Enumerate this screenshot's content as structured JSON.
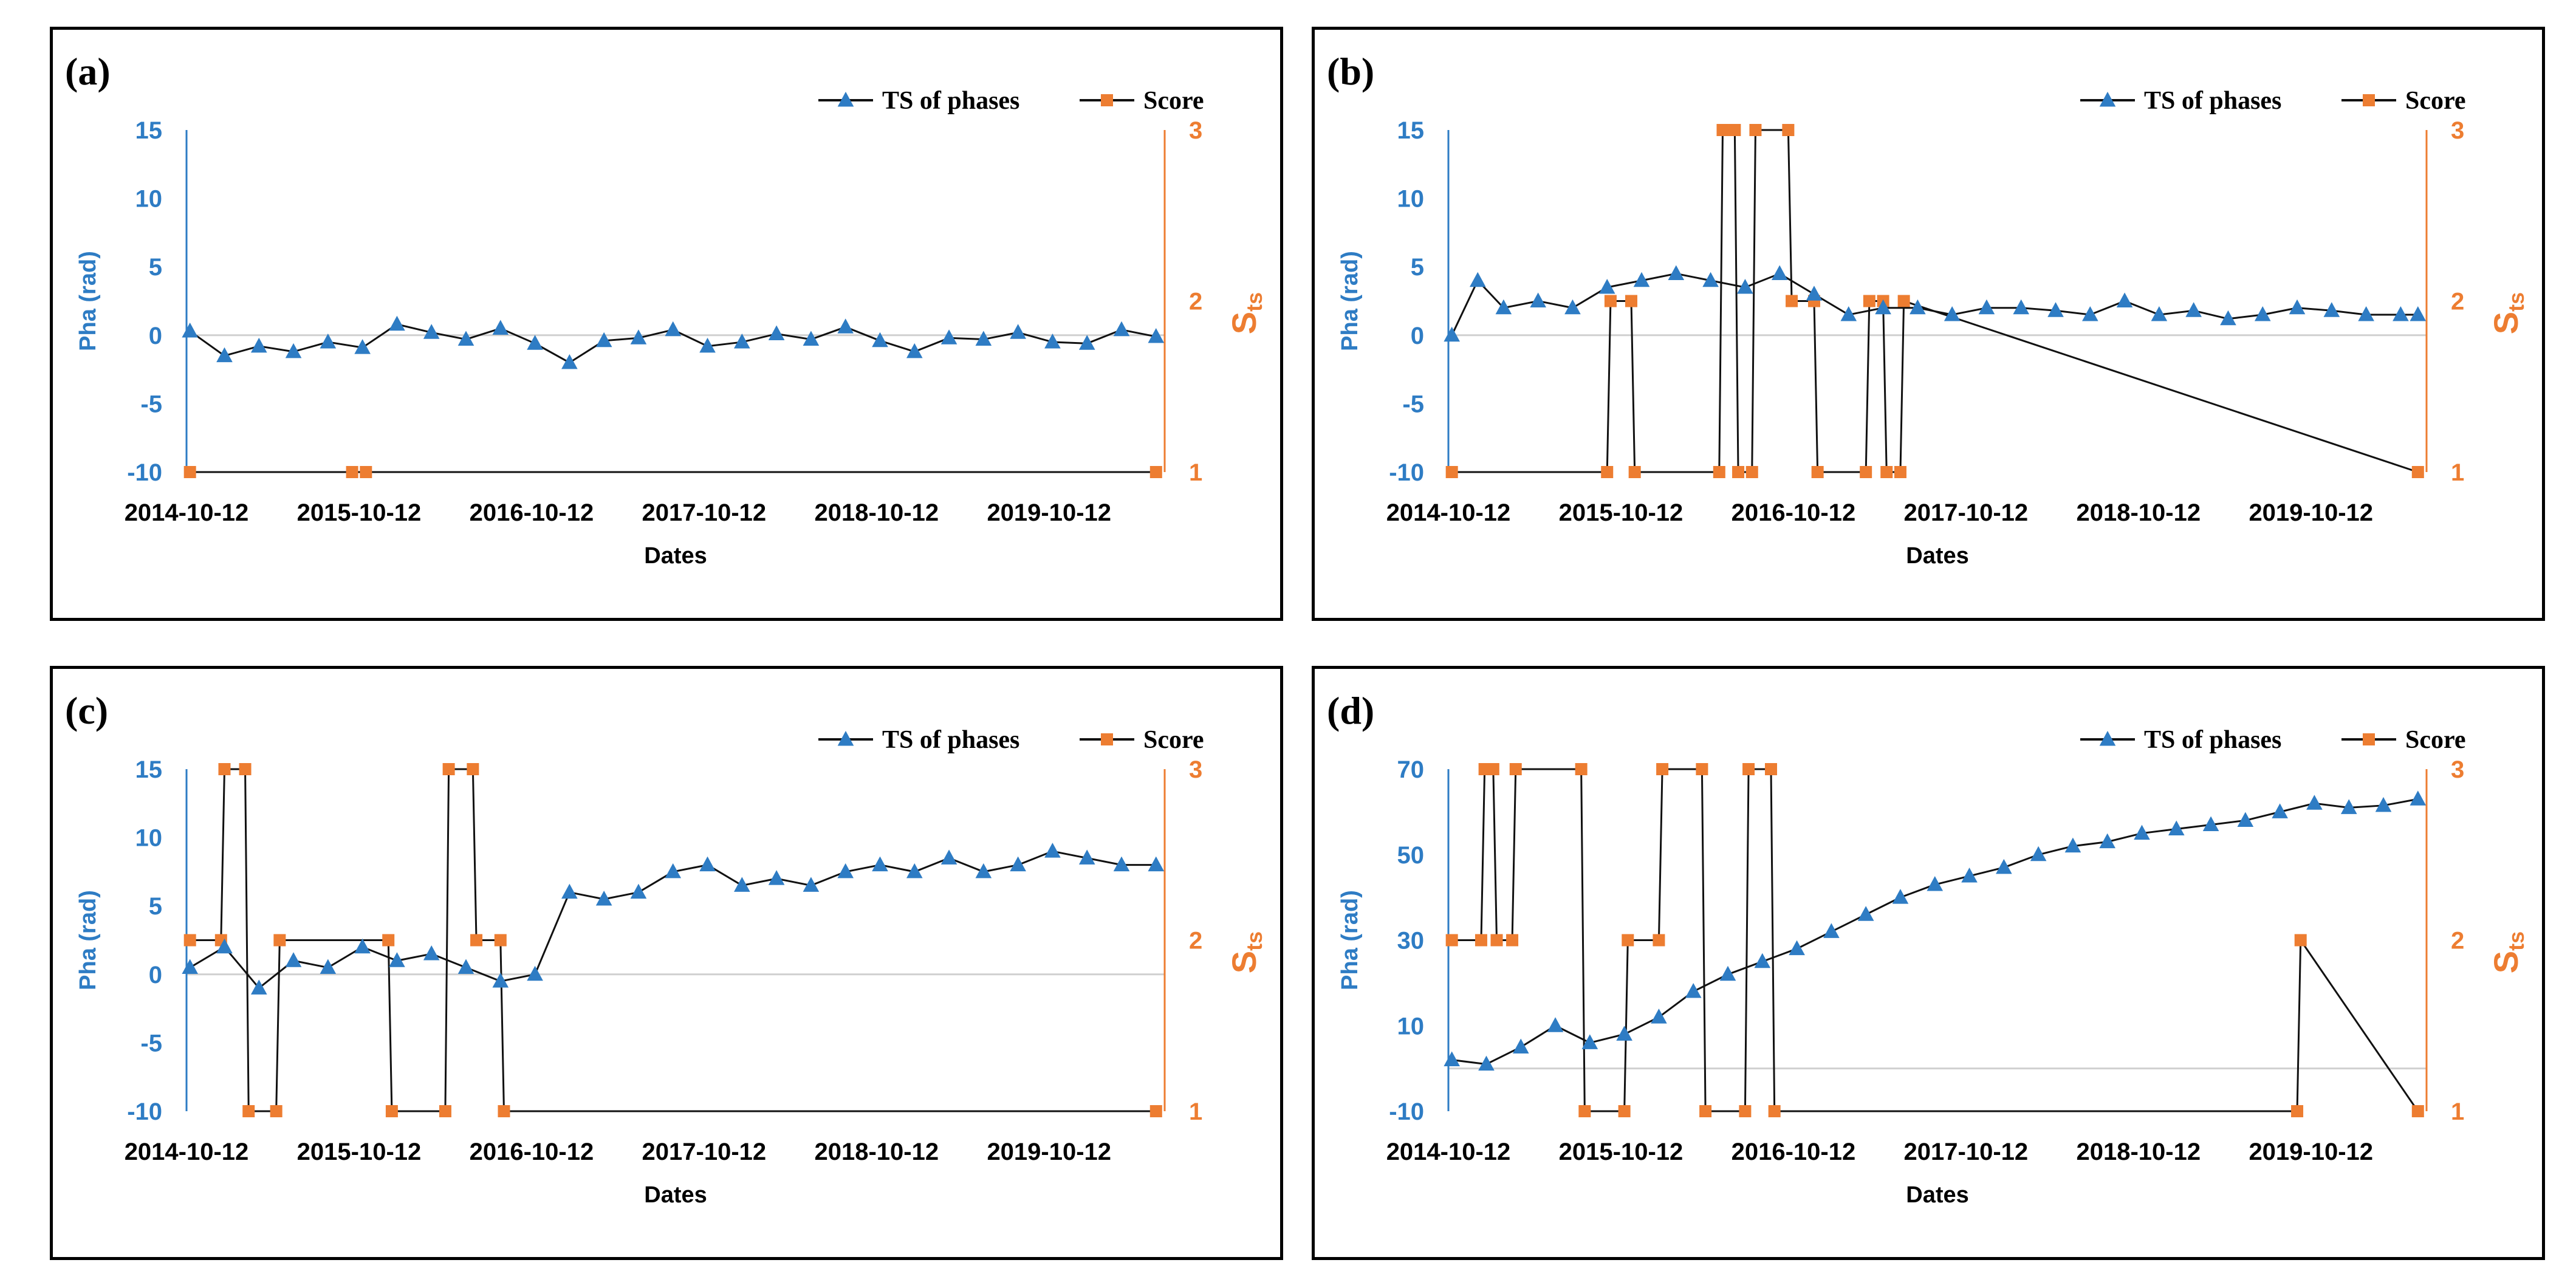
{
  "colors": {
    "ts": "#2e7cc4",
    "score": "#ed7d31",
    "line": "#111111",
    "zero": "#d0d0d0"
  },
  "chart_data": [
    {
      "type": "line",
      "panel_label": "(a)",
      "xlabel": "Dates",
      "ylabel": "Pha (rad)",
      "y2label": "S",
      "y2label_sub": "ts",
      "x_tick_labels": [
        "2014-10-12",
        "2015-10-12",
        "2016-10-12",
        "2017-10-12",
        "2018-10-12",
        "2019-10-12"
      ],
      "x_range": [
        2014.78,
        2020.45
      ],
      "ylim": [
        -10,
        15
      ],
      "y_ticks": [
        -10,
        -5,
        0,
        5,
        10,
        15
      ],
      "y2lim": [
        1,
        3
      ],
      "y2_ticks": [
        1,
        2,
        3
      ],
      "legend": [
        "TS of phases",
        "Score"
      ],
      "series": [
        {
          "name": "TS of phases",
          "axis": "left",
          "x": [
            2014.8,
            2015.0,
            2015.2,
            2015.4,
            2015.6,
            2015.8,
            2016.0,
            2016.2,
            2016.4,
            2016.6,
            2016.8,
            2017.0,
            2017.2,
            2017.4,
            2017.6,
            2017.8,
            2018.0,
            2018.2,
            2018.4,
            2018.6,
            2018.8,
            2019.0,
            2019.2,
            2019.4,
            2019.6,
            2019.8,
            2020.0,
            2020.2,
            2020.4
          ],
          "values": [
            0.3,
            -1.5,
            -0.8,
            -1.2,
            -0.5,
            -0.9,
            0.8,
            0.2,
            -0.3,
            0.5,
            -0.6,
            -2.0,
            -0.4,
            -0.2,
            0.4,
            -0.8,
            -0.5,
            0.1,
            -0.3,
            0.6,
            -0.4,
            -1.2,
            -0.2,
            -0.3,
            0.2,
            -0.5,
            -0.6,
            0.4,
            -0.1
          ]
        },
        {
          "name": "Score",
          "axis": "right",
          "x": [
            2014.8,
            2015.74,
            2015.82,
            2020.4
          ],
          "values": [
            1,
            1,
            1,
            1
          ]
        }
      ]
    },
    {
      "type": "line",
      "panel_label": "(b)",
      "xlabel": "Dates",
      "ylabel": "Pha (rad)",
      "y2label": "S",
      "y2label_sub": "ts",
      "x_tick_labels": [
        "2014-10-12",
        "2015-10-12",
        "2016-10-12",
        "2017-10-12",
        "2018-10-12",
        "2019-10-12"
      ],
      "x_range": [
        2014.78,
        2020.45
      ],
      "ylim": [
        -10,
        15
      ],
      "y_ticks": [
        -10,
        -5,
        0,
        5,
        10,
        15
      ],
      "y2lim": [
        1,
        3
      ],
      "y2_ticks": [
        1,
        2,
        3
      ],
      "legend": [
        "TS of phases",
        "Score"
      ],
      "series": [
        {
          "name": "TS of phases",
          "axis": "left",
          "x": [
            2014.8,
            2014.95,
            2015.1,
            2015.3,
            2015.5,
            2015.7,
            2015.9,
            2016.1,
            2016.3,
            2016.5,
            2016.7,
            2016.9,
            2017.1,
            2017.3,
            2017.5,
            2017.7,
            2017.9,
            2018.1,
            2018.3,
            2018.5,
            2018.7,
            2018.9,
            2019.1,
            2019.3,
            2019.5,
            2019.7,
            2019.9,
            2020.1,
            2020.3,
            2020.4
          ],
          "values": [
            0.0,
            4.0,
            2.0,
            2.5,
            2.0,
            3.5,
            4.0,
            4.5,
            4.0,
            3.5,
            4.5,
            3.0,
            1.5,
            2.0,
            2.0,
            1.5,
            2.0,
            2.0,
            1.8,
            1.5,
            2.5,
            1.5,
            1.8,
            1.2,
            1.5,
            2.0,
            1.8,
            1.5,
            1.5,
            1.5
          ]
        },
        {
          "name": "Score",
          "axis": "right",
          "x": [
            2014.8,
            2015.7,
            2015.72,
            2015.84,
            2015.86,
            2016.35,
            2016.37,
            2016.44,
            2016.46,
            2016.54,
            2016.56,
            2016.75,
            2016.77,
            2016.9,
            2016.92,
            2017.2,
            2017.22,
            2017.3,
            2017.32,
            2017.4,
            2017.42,
            2020.4
          ],
          "values": [
            1,
            1,
            2,
            2,
            1,
            1,
            3,
            3,
            1,
            1,
            3,
            3,
            2,
            2,
            1,
            1,
            2,
            2,
            1,
            1,
            2,
            1
          ]
        }
      ]
    },
    {
      "type": "line",
      "panel_label": "(c)",
      "xlabel": "Dates",
      "ylabel": "Pha (rad)",
      "y2label": "S",
      "y2label_sub": "ts",
      "x_tick_labels": [
        "2014-10-12",
        "2015-10-12",
        "2016-10-12",
        "2017-10-12",
        "2018-10-12",
        "2019-10-12"
      ],
      "x_range": [
        2014.78,
        2020.45
      ],
      "ylim": [
        -10,
        15
      ],
      "y_ticks": [
        -10,
        -5,
        0,
        5,
        10,
        15
      ],
      "y2lim": [
        1,
        3
      ],
      "y2_ticks": [
        1,
        2,
        3
      ],
      "legend": [
        "TS of phases",
        "Score"
      ],
      "series": [
        {
          "name": "TS of phases",
          "axis": "left",
          "x": [
            2014.8,
            2015.0,
            2015.2,
            2015.4,
            2015.6,
            2015.8,
            2016.0,
            2016.2,
            2016.4,
            2016.6,
            2016.8,
            2017.0,
            2017.2,
            2017.4,
            2017.6,
            2017.8,
            2018.0,
            2018.2,
            2018.4,
            2018.6,
            2018.8,
            2019.0,
            2019.2,
            2019.4,
            2019.6,
            2019.8,
            2020.0,
            2020.2,
            2020.4
          ],
          "values": [
            0.5,
            2.0,
            -1.0,
            1.0,
            0.5,
            2.0,
            1.0,
            1.5,
            0.5,
            -0.5,
            0.0,
            6.0,
            5.5,
            6.0,
            7.5,
            8.0,
            6.5,
            7.0,
            6.5,
            7.5,
            8.0,
            7.5,
            8.5,
            7.5,
            8.0,
            9.0,
            8.5,
            8.0,
            8.0
          ]
        },
        {
          "name": "Score",
          "axis": "right",
          "x": [
            2014.8,
            2014.98,
            2015.0,
            2015.12,
            2015.14,
            2015.3,
            2015.32,
            2015.95,
            2015.97,
            2016.28,
            2016.3,
            2016.44,
            2016.46,
            2016.6,
            2016.62,
            2020.4
          ],
          "values": [
            2,
            2,
            3,
            3,
            1,
            1,
            2,
            2,
            1,
            1,
            3,
            3,
            2,
            2,
            1,
            1
          ]
        }
      ]
    },
    {
      "type": "line",
      "panel_label": "(d)",
      "xlabel": "Dates",
      "ylabel": "Pha (rad)",
      "y2label": "S",
      "y2label_sub": "ts",
      "x_tick_labels": [
        "2014-10-12",
        "2015-10-12",
        "2016-10-12",
        "2017-10-12",
        "2018-10-12",
        "2019-10-12"
      ],
      "x_range": [
        2014.78,
        2020.45
      ],
      "ylim": [
        -10,
        70
      ],
      "y_ticks": [
        -10,
        10,
        30,
        50,
        70
      ],
      "y2lim": [
        1,
        3
      ],
      "y2_ticks": [
        1,
        2,
        3
      ],
      "legend": [
        "TS of phases",
        "Score"
      ],
      "series": [
        {
          "name": "TS of phases",
          "axis": "left",
          "x": [
            2014.8,
            2015.0,
            2015.2,
            2015.4,
            2015.6,
            2015.8,
            2016.0,
            2016.2,
            2016.4,
            2016.6,
            2016.8,
            2017.0,
            2017.2,
            2017.4,
            2017.6,
            2017.8,
            2018.0,
            2018.2,
            2018.4,
            2018.6,
            2018.8,
            2019.0,
            2019.2,
            2019.4,
            2019.6,
            2019.8,
            2020.0,
            2020.2,
            2020.4
          ],
          "values": [
            2.0,
            1.0,
            5.0,
            10.0,
            6.0,
            8.0,
            12.0,
            18.0,
            22.0,
            25.0,
            28.0,
            32.0,
            36.0,
            40.0,
            43.0,
            45.0,
            47.0,
            50.0,
            52.0,
            53.0,
            55.0,
            56.0,
            57.0,
            58.0,
            60.0,
            62.0,
            61.0,
            61.5,
            63.0
          ]
        },
        {
          "name": "Score",
          "axis": "right",
          "x": [
            2014.8,
            2014.97,
            2014.99,
            2015.04,
            2015.06,
            2015.15,
            2015.17,
            2015.55,
            2015.57,
            2015.8,
            2015.82,
            2016.0,
            2016.02,
            2016.25,
            2016.27,
            2016.5,
            2016.52,
            2016.65,
            2016.67,
            2019.7,
            2019.72,
            2020.4
          ],
          "values": [
            2,
            2,
            3,
            3,
            2,
            2,
            3,
            3,
            1,
            1,
            2,
            2,
            3,
            3,
            1,
            1,
            3,
            3,
            1,
            1,
            2,
            1
          ]
        }
      ]
    }
  ]
}
